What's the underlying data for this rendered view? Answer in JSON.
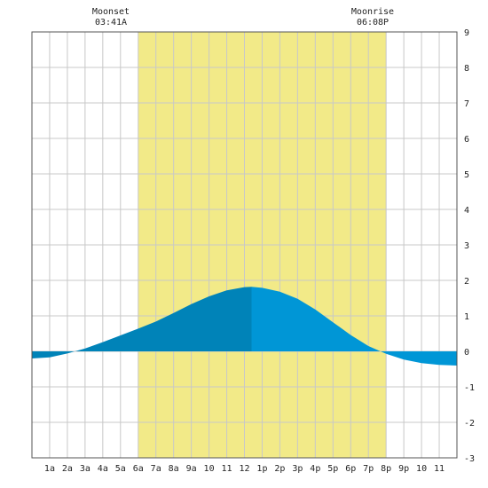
{
  "chart_data": {
    "type": "area",
    "annotations": {
      "moonset": {
        "label": "Moonset",
        "time": "03:41A"
      },
      "moonrise": {
        "label": "Moonrise",
        "time": "06:08P"
      }
    },
    "x_ticks": [
      "1a",
      "2a",
      "3a",
      "4a",
      "5a",
      "6a",
      "7a",
      "8a",
      "9a",
      "10",
      "11",
      "12",
      "1p",
      "2p",
      "3p",
      "4p",
      "5p",
      "6p",
      "7p",
      "8p",
      "9p",
      "10",
      "11"
    ],
    "xlim": [
      0,
      24
    ],
    "ylim": [
      -3,
      9
    ],
    "y_ticks": [
      -3,
      -2,
      -1,
      0,
      1,
      2,
      3,
      4,
      5,
      6,
      7,
      8,
      9
    ],
    "daylight": {
      "start_hour": 6.0,
      "end_hour": 20.0
    },
    "high_tide_hour": 12.4,
    "series": [
      {
        "x": [
          0,
          1,
          2,
          3,
          4,
          5,
          6,
          7,
          8,
          9,
          10,
          11,
          12,
          12.4,
          13,
          14,
          15,
          16,
          17,
          18,
          19,
          20,
          21,
          22,
          23,
          24
        ],
        "values": [
          -0.2,
          -0.17,
          -0.06,
          0.08,
          0.26,
          0.45,
          0.64,
          0.84,
          1.08,
          1.33,
          1.55,
          1.72,
          1.81,
          1.82,
          1.79,
          1.68,
          1.48,
          1.18,
          0.82,
          0.46,
          0.15,
          -0.07,
          -0.23,
          -0.33,
          -0.38,
          -0.4
        ]
      }
    ],
    "colors": {
      "daylight": "#f2ea88",
      "tide_rising": "#0083b8",
      "tide_falling": "#0096d6",
      "grid": "#c8c8c8",
      "frame": "#555555"
    }
  }
}
